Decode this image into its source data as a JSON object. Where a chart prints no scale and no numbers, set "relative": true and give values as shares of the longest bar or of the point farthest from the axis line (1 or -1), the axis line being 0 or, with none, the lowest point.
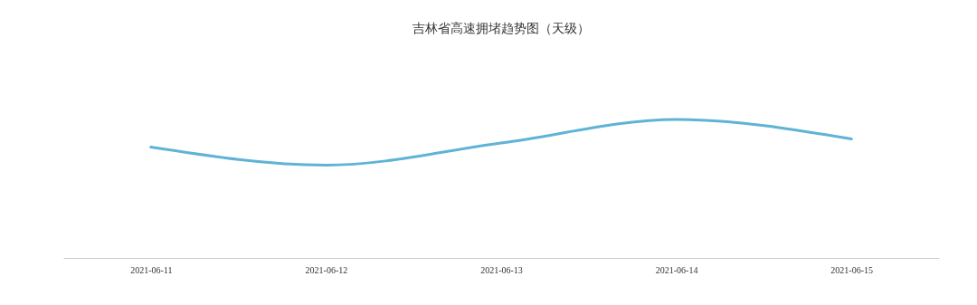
{
  "chart_data": {
    "type": "line",
    "title": "吉林省高速拥堵趋势图（天级）",
    "relative": true,
    "categories": [
      "2021-06-11",
      "2021-06-12",
      "2021-06-13",
      "2021-06-14",
      "2021-06-15"
    ],
    "series": [
      {
        "color": "#5fb3d6",
        "values": [
          0.8,
          0.67,
          0.83,
          1,
          0.86
        ]
      }
    ],
    "grid": false,
    "marker": "none",
    "line_style": "solid"
  }
}
